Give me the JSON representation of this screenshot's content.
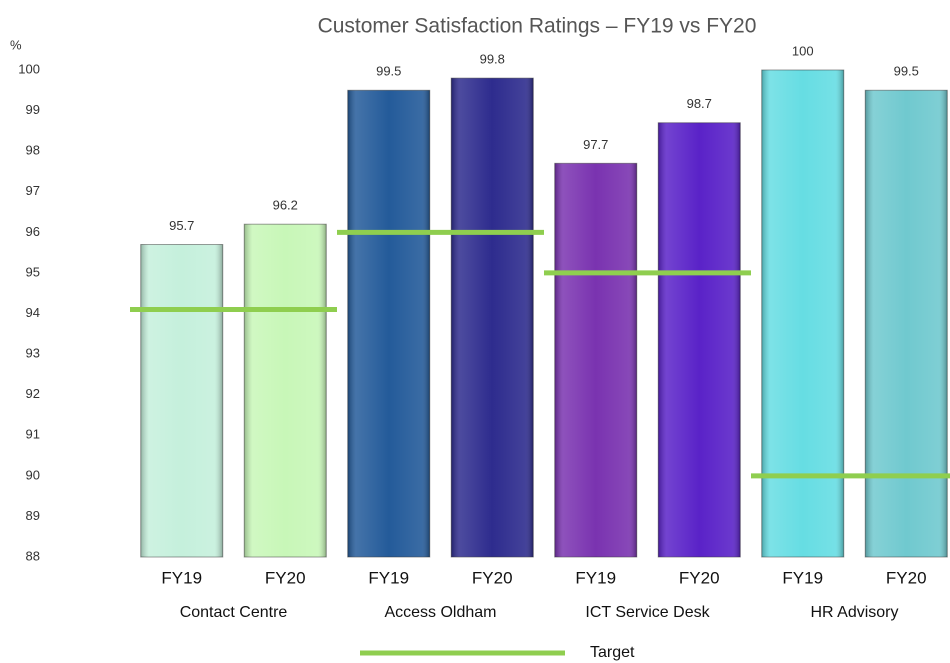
{
  "chart_data": {
    "type": "bar",
    "title": "Customer Satisfaction Ratings – FY19 vs FY20",
    "y_label": "%",
    "categories": [
      "FY19",
      "FY20",
      "FY19",
      "FY20",
      "FY19",
      "FY20",
      "FY19",
      "FY20"
    ],
    "values": [
      95.7,
      96.2,
      99.5,
      99.8,
      97.7,
      98.7,
      100,
      99.5
    ],
    "colors": [
      "#c5f0dc",
      "#c8f7b8",
      "#245b9a",
      "#2e2c8e",
      "#7a33b0",
      "#5a22c8",
      "#66dde3",
      "#70c9cf"
    ],
    "groups": [
      "Contact Centre",
      "Access Oldham",
      "ICT Service Desk",
      "HR Advisory"
    ],
    "target": {
      "name": "Target",
      "color": "#8fce4f",
      "values": [
        94.1,
        96,
        95,
        90
      ]
    },
    "ylim": [
      88,
      100
    ],
    "yticks": [
      88,
      89,
      90,
      91,
      92,
      93,
      94,
      95,
      96,
      97,
      98,
      99,
      100
    ]
  }
}
